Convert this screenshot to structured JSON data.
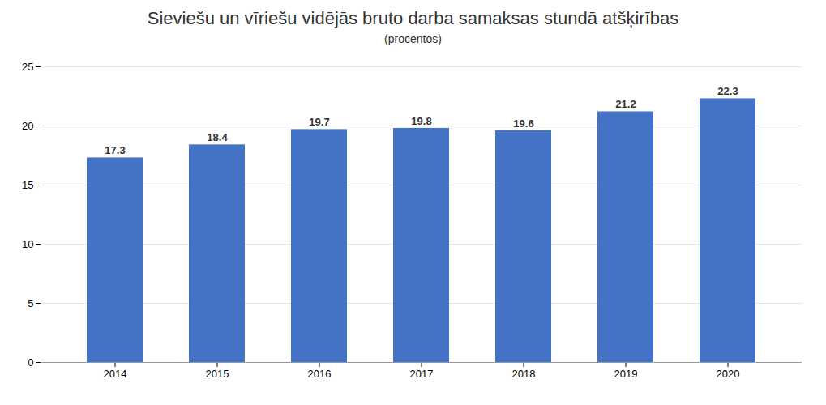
{
  "chart_data": {
    "type": "bar",
    "title": "Sieviešu un vīriešu vidējās bruto darba samaksas stundā atšķirības",
    "subtitle": "(procentos)",
    "categories": [
      "2014",
      "2015",
      "2016",
      "2017",
      "2018",
      "2019",
      "2020"
    ],
    "values": [
      17.3,
      18.4,
      19.7,
      19.8,
      19.6,
      21.2,
      22.3
    ],
    "color": "#4472C4",
    "ylim": [
      0,
      25
    ],
    "yticks": [
      0,
      5,
      10,
      15,
      20,
      25
    ],
    "grid": true,
    "data_labels": true
  }
}
